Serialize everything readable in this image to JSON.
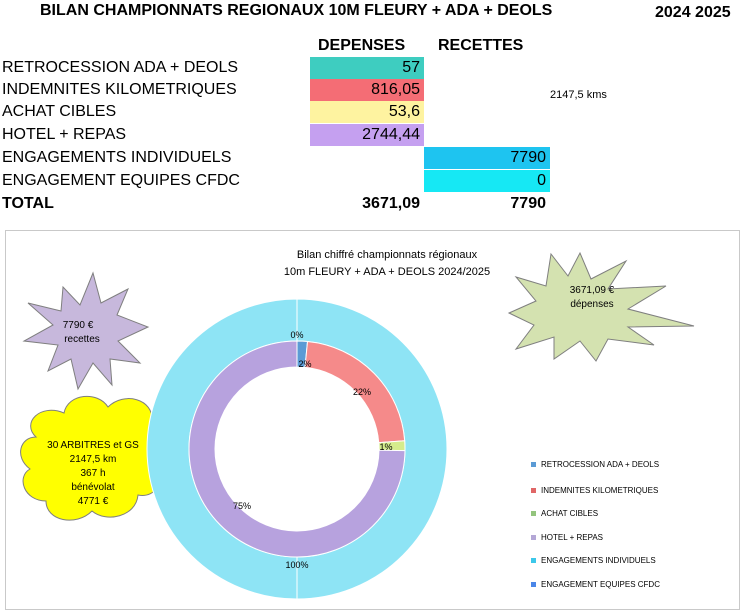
{
  "header": {
    "title": "BILAN CHAMPIONNATS REGIONAUX 10M FLEURY + ADA + DEOLS",
    "season": "2024 2025"
  },
  "table": {
    "col_depenses": "DEPENSES",
    "col_recettes": "RECETTES",
    "rows": [
      {
        "label": "RETROCESSION ADA + DEOLS",
        "depense": "57",
        "recette": "",
        "color": "#3ecdc0"
      },
      {
        "label": "INDEMNITES KILOMETRIQUES",
        "depense": "816,05",
        "recette": "",
        "color": "#f46d75"
      },
      {
        "label": "ACHAT CIBLES",
        "depense": "53,6",
        "recette": "",
        "color": "#fef3a0"
      },
      {
        "label": "HOTEL + REPAS",
        "depense": "2744,44",
        "recette": "",
        "color": "#c5a0f0"
      },
      {
        "label": "ENGAGEMENTS INDIVIDUELS",
        "depense": "",
        "recette": "7790",
        "color": "#1ec4f0"
      },
      {
        "label": "ENGAGEMENT EQUIPES CFDC",
        "depense": "",
        "recette": "0",
        "color": "#16e8f4"
      }
    ],
    "kms_note": "2147,5 kms",
    "total_label": "TOTAL",
    "total_depense": "3671,09",
    "total_recette": "7790"
  },
  "callouts": {
    "recettes": {
      "line1": "7790 €",
      "line2": "recettes",
      "color": "#c7b8dc"
    },
    "depenses": {
      "line1": "3671,09 €",
      "line2": "dépenses",
      "color": "#d4e2b0"
    },
    "arbitres": {
      "line1": "30 ARBITRES et GS",
      "line2": "2147,5 km",
      "line3": "367 h",
      "line4": "bénévolat",
      "line5": "4771 €",
      "color": "#ffff00"
    }
  },
  "chart_data": {
    "type": "pie",
    "title": "Bilan chiffré championnats régionaux",
    "subtitle": "10m FLEURY + ADA +  DEOLS 2024/2025",
    "categories": [
      "RETROCESSION ADA + DEOLS",
      "INDEMNITES KILOMETRIQUES",
      "ACHAT CIBLES",
      "HOTEL + REPAS",
      "ENGAGEMENTS INDIVIDUELS",
      "ENGAGEMENT EQUIPES CFDC"
    ],
    "series": [
      {
        "values": [
          57,
          816.05,
          53.6,
          2744.44,
          0,
          0
        ],
        "labels": [
          "2%",
          "22%",
          "1%",
          "75%",
          "",
          ""
        ]
      },
      {
        "values": [
          0,
          0,
          0,
          0,
          7790,
          0
        ],
        "labels": [
          "",
          "",
          "",
          "",
          "100%",
          "0%"
        ]
      }
    ],
    "colors": [
      "#5b9bd5",
      "#e06666",
      "#93c47d",
      "#b4a7d6",
      "#3cc8ea",
      "#4a86e8"
    ],
    "ring_colors": {
      "inner": [
        "#5b9bd5",
        "#f58a8a",
        "#d5ec8c",
        "#b7a2de",
        "#a9dcf0",
        "#4a86e8"
      ],
      "outer": "#8ee4f5"
    },
    "legend_position": "right"
  }
}
